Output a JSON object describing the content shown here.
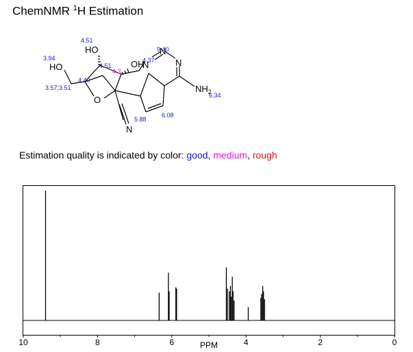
{
  "title": {
    "main": "ChemNMR ",
    "sup": "1",
    "rest": "H Estimation"
  },
  "molecule": {
    "atoms": {
      "HO_a": "HO",
      "HO_b": "HO",
      "OH": "OH",
      "O_ring": "O",
      "N1": "N",
      "N2": "N",
      "N3": "N",
      "NH2": "NH",
      "NH2_sub": "2",
      "CN_N": "N"
    },
    "shift_labels": {
      "s451a": "4.51",
      "s394": "3.94",
      "s940": "9.40",
      "s451b": "4.51",
      "s437": "4.37",
      "s43": "4.3",
      "s440": "4.40",
      "s357": "3.57;3.51",
      "s634": "6.34",
      "s588": "5.88",
      "s608": "6.08"
    }
  },
  "quality": {
    "prefix": "Estimation quality is indicated by color: ",
    "good": "good",
    "sep1": ", ",
    "medium": "medium",
    "sep2": ", ",
    "rough": "rough",
    "colors": {
      "good": "#1515c8",
      "medium": "#e010e0",
      "rough": "#e01010"
    }
  },
  "chart_data": {
    "type": "line",
    "xlabel": "PPM",
    "xlim": [
      10,
      0
    ],
    "reversed_x": true,
    "x_ticks": [
      "10",
      "8",
      "6",
      "4",
      "2",
      "0"
    ],
    "peaks": [
      {
        "ppm": 9.4,
        "height": 0.98
      },
      {
        "ppm": 6.34,
        "height": 0.21
      },
      {
        "ppm": 6.09,
        "height": 0.36
      },
      {
        "ppm": 6.07,
        "height": 0.22
      },
      {
        "ppm": 5.89,
        "height": 0.25
      },
      {
        "ppm": 5.87,
        "height": 0.24
      },
      {
        "ppm": 4.53,
        "height": 0.4
      },
      {
        "ppm": 4.5,
        "height": 0.24
      },
      {
        "ppm": 4.45,
        "height": 0.22
      },
      {
        "ppm": 4.42,
        "height": 0.26
      },
      {
        "ppm": 4.4,
        "height": 0.18
      },
      {
        "ppm": 4.37,
        "height": 0.33
      },
      {
        "ppm": 4.35,
        "height": 0.22
      },
      {
        "ppm": 4.32,
        "height": 0.15
      },
      {
        "ppm": 3.94,
        "height": 0.1
      },
      {
        "ppm": 3.6,
        "height": 0.17
      },
      {
        "ppm": 3.58,
        "height": 0.2
      },
      {
        "ppm": 3.55,
        "height": 0.26
      },
      {
        "ppm": 3.53,
        "height": 0.22
      },
      {
        "ppm": 3.5,
        "height": 0.16
      }
    ]
  }
}
